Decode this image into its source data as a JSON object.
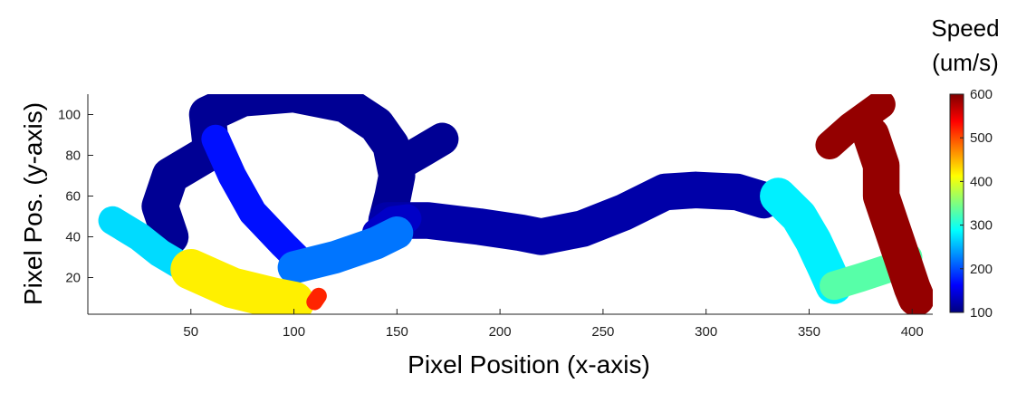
{
  "chart_data": {
    "type": "scatter",
    "title": "",
    "xlabel": "Pixel Position (x-axis)",
    "ylabel": "Pixel Pos. (y-axis)",
    "xlim": [
      0,
      410
    ],
    "ylim": [
      2,
      110
    ],
    "xticks": [
      50,
      100,
      150,
      200,
      250,
      300,
      350,
      400
    ],
    "yticks": [
      20,
      40,
      60,
      80,
      100
    ],
    "grid": false,
    "colorbar": {
      "title_lines": [
        "Speed",
        "(um/s)"
      ],
      "range": [
        100,
        600
      ],
      "ticks": [
        100,
        200,
        300,
        400,
        500,
        600
      ],
      "colormap": "jet"
    },
    "tracks": [
      {
        "speed": 110,
        "width": 18,
        "points": [
          [
            40,
            40
          ],
          [
            35,
            55
          ],
          [
            40,
            70
          ],
          [
            60,
            82
          ],
          [
            58,
            100
          ],
          [
            75,
            108
          ],
          [
            100,
            110
          ],
          [
            125,
            105
          ],
          [
            140,
            95
          ],
          [
            147,
            85
          ],
          [
            150,
            70
          ],
          [
            148,
            60
          ],
          [
            145,
            48
          ]
        ]
      },
      {
        "speed": 110,
        "width": 16,
        "points": [
          [
            150,
            75
          ],
          [
            162,
            82
          ],
          [
            172,
            88
          ]
        ]
      },
      {
        "speed": 120,
        "width": 18,
        "points": [
          [
            145,
            48
          ],
          [
            165,
            48
          ],
          [
            190,
            45
          ],
          [
            210,
            42
          ],
          [
            220,
            40
          ],
          [
            240,
            44
          ],
          [
            260,
            52
          ],
          [
            280,
            62
          ],
          [
            295,
            63
          ],
          [
            315,
            62
          ],
          [
            328,
            58
          ]
        ]
      },
      {
        "speed": 170,
        "width": 14,
        "points": [
          [
            62,
            88
          ],
          [
            70,
            70
          ],
          [
            80,
            52
          ],
          [
            95,
            36
          ],
          [
            105,
            26
          ]
        ]
      },
      {
        "speed": 135,
        "width": 14,
        "points": [
          [
            140,
            42
          ],
          [
            148,
            48
          ],
          [
            155,
            49
          ]
        ]
      },
      {
        "speed": 220,
        "width": 16,
        "points": [
          [
            100,
            25
          ],
          [
            120,
            30
          ],
          [
            140,
            37
          ],
          [
            150,
            42
          ]
        ]
      },
      {
        "speed": 270,
        "width": 14,
        "points": [
          [
            12,
            48
          ],
          [
            25,
            40
          ],
          [
            35,
            32
          ],
          [
            45,
            26
          ]
        ]
      },
      {
        "speed": 280,
        "width": 18,
        "points": [
          [
            335,
            60
          ],
          [
            345,
            50
          ],
          [
            352,
            38
          ],
          [
            358,
            25
          ],
          [
            362,
            16
          ]
        ]
      },
      {
        "speed": 330,
        "width": 14,
        "points": [
          [
            362,
            16
          ],
          [
            375,
            20
          ],
          [
            390,
            25
          ],
          [
            398,
            30
          ]
        ]
      },
      {
        "speed": 420,
        "width": 20,
        "points": [
          [
            50,
            24
          ],
          [
            70,
            15
          ],
          [
            90,
            10
          ],
          [
            100,
            8
          ]
        ]
      },
      {
        "speed": 520,
        "width": 8,
        "points": [
          [
            110,
            8
          ],
          [
            112,
            11
          ]
        ]
      },
      {
        "speed": 480,
        "width": 6,
        "points": [
          [
            387,
            56
          ],
          [
            390,
            52
          ]
        ]
      },
      {
        "speed": 590,
        "width": 18,
        "points": [
          [
            380,
            90
          ],
          [
            385,
            75
          ],
          [
            385,
            60
          ],
          [
            390,
            45
          ],
          [
            395,
            30
          ],
          [
            400,
            15
          ],
          [
            402,
            10
          ]
        ]
      },
      {
        "speed": 590,
        "width": 14,
        "points": [
          [
            360,
            85
          ],
          [
            370,
            94
          ],
          [
            385,
            105
          ]
        ]
      }
    ]
  }
}
